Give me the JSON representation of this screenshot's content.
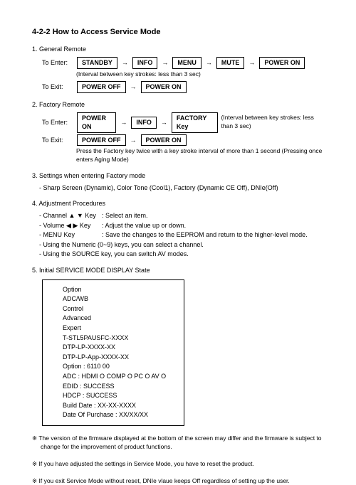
{
  "title": "4-2-2 How to Access Service Mode",
  "s1": {
    "head": "1. General Remote",
    "enterLabel": "To Enter:",
    "enterKeys": [
      "STANDBY",
      "INFO",
      "MENU",
      "MUTE",
      "POWER ON"
    ],
    "enterNote": "(Interval between key strokes: less than 3 sec)",
    "exitLabel": "To Exit:",
    "exitKeys": [
      "POWER OFF",
      "POWER ON"
    ]
  },
  "s2": {
    "head": "2. Factory Remote",
    "enterLabel": "To Enter:",
    "enterKeys": [
      "POWER ON",
      "INFO",
      "FACTORY Key"
    ],
    "enterNote": "(Interval between key strokes: less than 3 sec)",
    "exitLabel": "To Exit:",
    "exitKeys": [
      "POWER OFF",
      "POWER ON"
    ],
    "exitNote": "Press the Factory key twice with a key stroke interval of more than 1 second (Pressing once enters Aging Mode)"
  },
  "s3": {
    "head": "3. Settings when entering Factory mode",
    "line": "- Sharp Screen (Dynamic), Color Tone (Cool1), Factory (Dynamic CE Off), DNIe(Off)"
  },
  "s4": {
    "head": "4. Adjustment Procedures",
    "a": {
      "lbl": "- Channel ▲ ▼ Key",
      "val": ": Select an item."
    },
    "b": {
      "lbl": "- Volume  ◀ ▶  Key",
      "val": ": Adjust the value up or down."
    },
    "c": {
      "lbl": "- MENU Key",
      "val": ": Save the changes to the EEPROM and return to the higher-level mode."
    },
    "d": "- Using the Numeric (0~9) keys, you can select a channel.",
    "e": "- Using the SOURCE key, you can switch AV modes."
  },
  "s5": {
    "head": "5. Initial SERVICE MODE DISPLAY State",
    "lines": [
      "Option",
      "ADC/WB",
      "Control",
      "Advanced",
      "Expert",
      "T-STL5PAUSFC-XXXX",
      "DTP-LP-XXXX-XX",
      "DTP-LP-App-XXXX-XX",
      "Option : 6110 00",
      "ADC : HDMI O COMP O PC O AV O",
      "EDID : SUCCESS",
      "HDCP : SUCCESS",
      "Build Date : XX-XX-XXXX",
      "Date Of Purchase : XX/XX/XX"
    ]
  },
  "foot1": "※ The version of the firmware displayed at the bottom of the screen may differ and the firmware is subject to change for  the improvement of product functions.",
  "foot2": "※ If you have adjusted the settings in Service Mode, you have to reset the product.",
  "foot3": "※ If you exit Service Mode without reset, DNIe vlaue keeps Off regardless of setting up the user.",
  "arrow": "→"
}
